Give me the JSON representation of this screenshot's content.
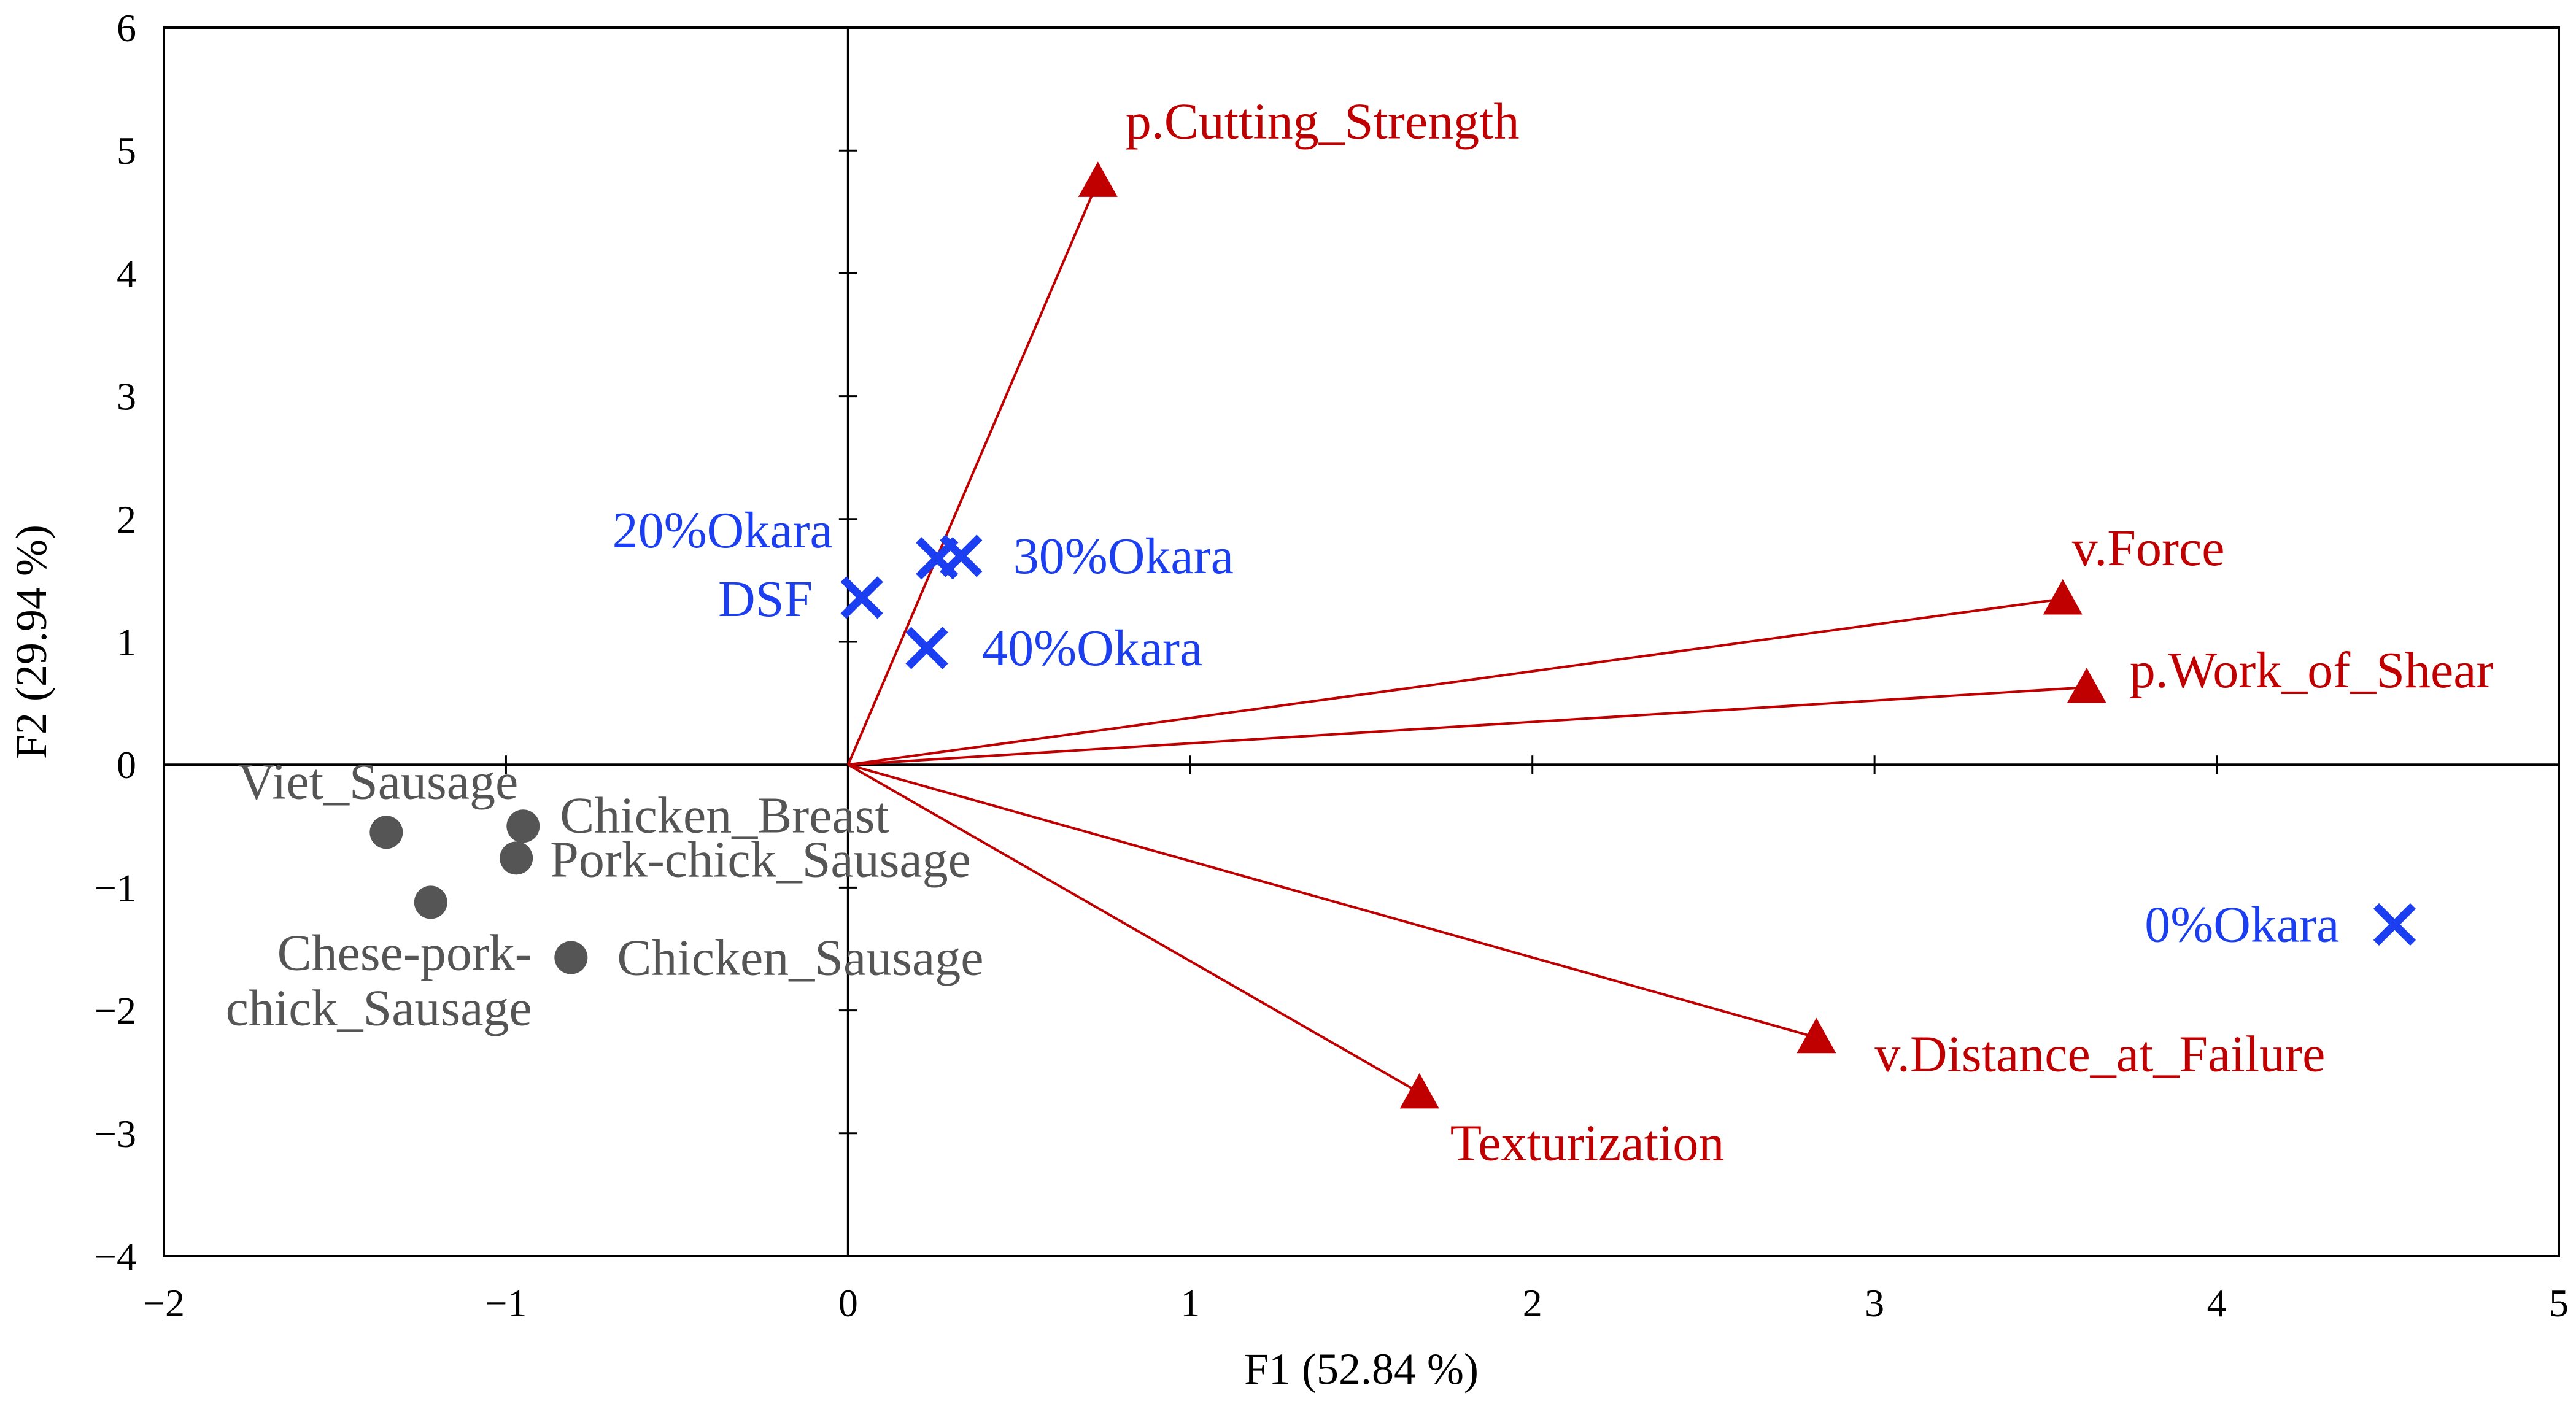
{
  "colors": {
    "variable": "#c00000",
    "treatment": "#1a3ef0",
    "sample": "#555555",
    "axis": "#000000"
  },
  "chart_data": {
    "type": "scatter",
    "title": "",
    "xlabel": "F1 (52.84 %)",
    "ylabel": "F2 (29.94 %)",
    "xlim": [
      -2,
      5
    ],
    "ylim": [
      -4,
      6
    ],
    "x_ticks": [
      -2,
      -1,
      0,
      1,
      2,
      3,
      4,
      5
    ],
    "y_ticks": [
      -4,
      -3,
      -2,
      -1,
      0,
      1,
      2,
      3,
      4,
      5,
      6
    ],
    "x_tick_labels": [
      "−2",
      "−1",
      "0",
      "1",
      "2",
      "3",
      "4",
      "5"
    ],
    "y_tick_labels": [
      "−4",
      "−3",
      "−2",
      "−1",
      "0",
      "1",
      "2",
      "3",
      "4",
      "5",
      "6"
    ],
    "grid": false,
    "series": [
      {
        "name": "Variables",
        "marker": "triangle",
        "vectors": true,
        "points": [
          {
            "label": "p.Cutting_Strength",
            "x": 0.73,
            "y": 4.75
          },
          {
            "label": "v.Force",
            "x": 3.55,
            "y": 1.35
          },
          {
            "label": "p.Work_of_Shear",
            "x": 3.62,
            "y": 0.63
          },
          {
            "label": "v.Distance_at_Failure",
            "x": 2.83,
            "y": -2.22
          },
          {
            "label": "Texturization",
            "x": 1.67,
            "y": -2.67
          }
        ]
      },
      {
        "name": "Treatments",
        "marker": "x",
        "points": [
          {
            "label": "20%Okara",
            "x": 0.26,
            "y": 1.68
          },
          {
            "label": "30%Okara",
            "x": 0.33,
            "y": 1.7
          },
          {
            "label": "DSF",
            "x": 0.04,
            "y": 1.36
          },
          {
            "label": "40%Okara",
            "x": 0.23,
            "y": 0.95
          },
          {
            "label": "0%Okara",
            "x": 4.52,
            "y": -1.3
          }
        ]
      },
      {
        "name": "Samples",
        "marker": "circle",
        "points": [
          {
            "label": "Viet_Sausage",
            "x": -1.35,
            "y": -0.55
          },
          {
            "label": "Chicken_Breast",
            "x": -0.95,
            "y": -0.5
          },
          {
            "label": "Pork-chick_Sausage",
            "x": -0.97,
            "y": -0.76
          },
          {
            "label": "Chese-pork-",
            "label2": "chick_Sausage",
            "x": -1.22,
            "y": -1.12
          },
          {
            "label": "Chicken_Sausage",
            "x": -0.81,
            "y": -1.57
          }
        ]
      }
    ]
  }
}
